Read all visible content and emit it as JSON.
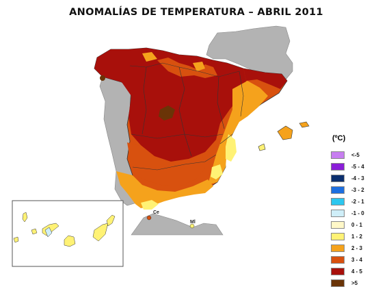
{
  "title": "ANOMALÍAS DE TEMPERATURA – ABRIL 2011",
  "legend": {
    "title": "(ºC)",
    "items": [
      {
        "label": "<-5",
        "color": "#c77ef0"
      },
      {
        "label": "-5 - 4",
        "color": "#8a1ed8"
      },
      {
        "label": "-4 - 3",
        "color": "#0b2f6e"
      },
      {
        "label": "-3 - 2",
        "color": "#1d6fe0"
      },
      {
        "label": "-2 - 1",
        "color": "#2cc7ef"
      },
      {
        "label": "-1 - 0",
        "color": "#cfeef8"
      },
      {
        "label": "0 - 1",
        "color": "#fff8c8"
      },
      {
        "label": "1 - 2",
        "color": "#fff275"
      },
      {
        "label": "2 - 3",
        "color": "#f5a21c"
      },
      {
        "label": "3 - 4",
        "color": "#d8510f"
      },
      {
        "label": "4 - 5",
        "color": "#a8100b"
      },
      {
        "label": ">5",
        "color": "#6a3407"
      }
    ]
  },
  "places": {
    "ceuta": "Ce",
    "melilla": "Ml"
  },
  "colors": {
    "land_outside": "#b3b3b3",
    "borders": "#333333"
  }
}
